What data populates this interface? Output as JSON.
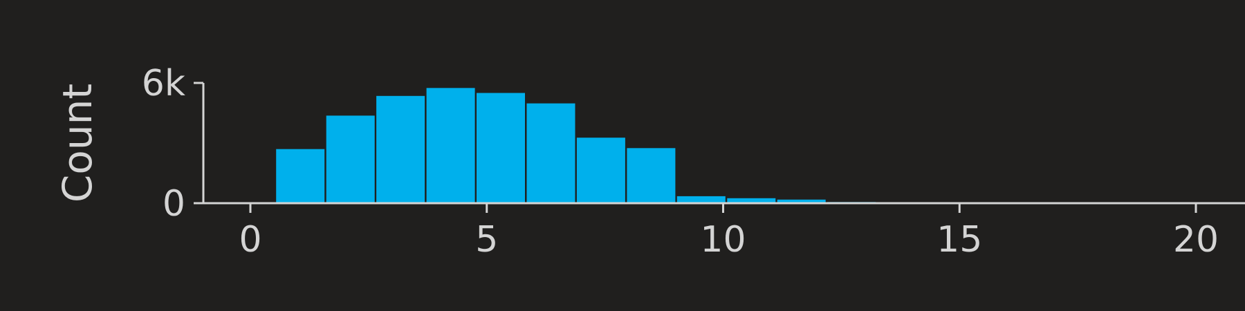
{
  "chart_data": {
    "type": "bar",
    "title": "",
    "xlabel": "",
    "ylabel": "Count",
    "xlim": [
      -1,
      21
    ],
    "ylim": [
      0,
      6000
    ],
    "grid": false,
    "legend": "none",
    "bar_color": "#00b0ec",
    "axis_color": "#d4d4d4",
    "background_color": "#201f1e",
    "bin_width": 1.06,
    "bars": [
      {
        "x": 0.53,
        "value": 2700
      },
      {
        "x": 1.59,
        "value": 4370
      },
      {
        "x": 2.65,
        "value": 5350
      },
      {
        "x": 3.71,
        "value": 5750
      },
      {
        "x": 4.77,
        "value": 5500
      },
      {
        "x": 5.83,
        "value": 4980
      },
      {
        "x": 6.89,
        "value": 3270
      },
      {
        "x": 7.95,
        "value": 2750
      },
      {
        "x": 9.01,
        "value": 350
      },
      {
        "x": 10.07,
        "value": 250
      },
      {
        "x": 11.13,
        "value": 180
      },
      {
        "x": 12.19,
        "value": 60
      }
    ],
    "x_ticks": [
      {
        "value": 0,
        "label": "0"
      },
      {
        "value": 5,
        "label": "5"
      },
      {
        "value": 10,
        "label": "10"
      },
      {
        "value": 15,
        "label": "15"
      },
      {
        "value": 20,
        "label": "20"
      }
    ],
    "y_ticks": [
      {
        "value": 0,
        "label": "0"
      },
      {
        "value": 6000,
        "label": "6k"
      }
    ]
  }
}
